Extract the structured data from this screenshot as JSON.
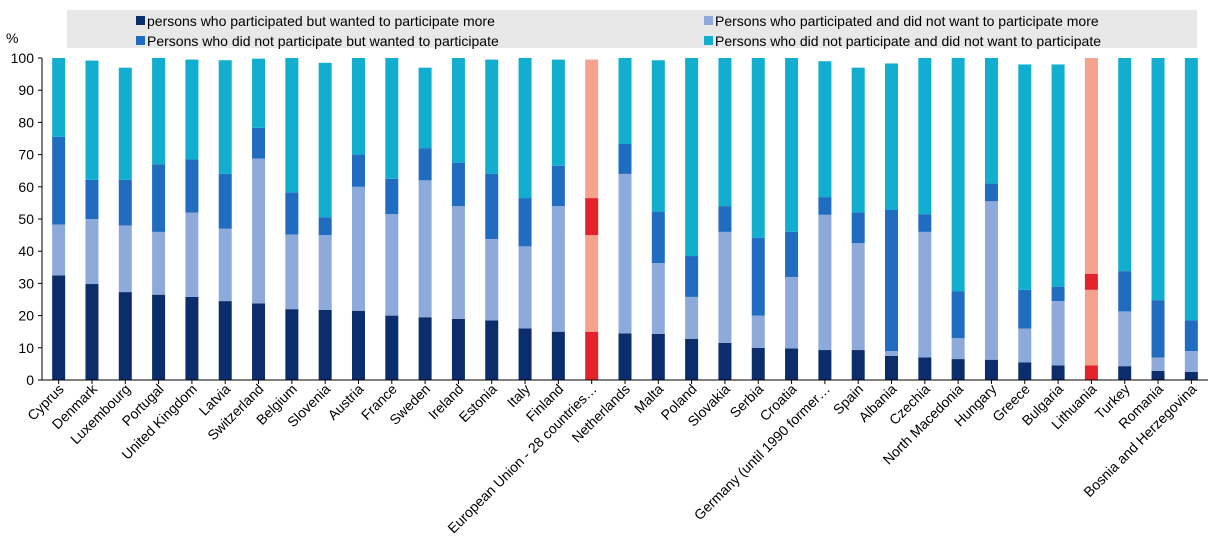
{
  "chart_data": {
    "type": "bar",
    "stacked": true,
    "title": "",
    "ylabel": "%",
    "xlabel": "",
    "ylim": [
      0,
      100
    ],
    "yticks": [
      0,
      10,
      20,
      30,
      40,
      50,
      60,
      70,
      80,
      90,
      100
    ],
    "grid": false,
    "legend_position": "top",
    "categories": [
      "Cyprus",
      "Denmark",
      "Luxembourg",
      "Portugal",
      "United Kingdom",
      "Latvia",
      "Switzerland",
      "Belgium",
      "Slovenia",
      "Austria",
      "France",
      "Sweden",
      "Ireland",
      "Estonia",
      "Italy",
      "Finland",
      "European Union - 28 countries…",
      "Netherlands",
      "Malta",
      "Poland",
      "Slovakia",
      "Serbia",
      "Croatia",
      "Germany (until 1990 former…",
      "Spain",
      "Albania",
      "Czechia",
      "North Macedonia",
      "Hungary",
      "Greece",
      "Bulgaria",
      "Lithuania",
      "Turkey",
      "Romania",
      "Bosnia and Herzegovina"
    ],
    "highlight_categories": [
      "European Union - 28 countries…",
      "Lithuania"
    ],
    "series": [
      {
        "name": "persons who participated but wanted to participate more",
        "color": "#0b2d6b",
        "highlight_color": "#e3222b",
        "values": [
          32.5,
          29.8,
          27.3,
          26.5,
          25.8,
          24.5,
          23.8,
          22.0,
          21.8,
          21.5,
          20.0,
          19.5,
          19.0,
          18.5,
          16.0,
          15.0,
          15.0,
          14.5,
          14.3,
          12.8,
          11.5,
          10.0,
          9.8,
          9.3,
          9.3,
          7.5,
          7.0,
          6.5,
          6.3,
          5.5,
          4.5,
          4.5,
          4.3,
          2.8,
          2.5
        ]
      },
      {
        "name": "Persons who participated and did not want to participate more",
        "color": "#8eaadb",
        "highlight_color": "#f5a28e",
        "values": [
          15.8,
          20.2,
          20.7,
          19.5,
          26.2,
          22.5,
          45.0,
          23.2,
          23.2,
          38.5,
          31.5,
          42.5,
          35.0,
          25.3,
          25.5,
          39.0,
          30.0,
          49.5,
          22.0,
          13.0,
          34.5,
          10.0,
          22.2,
          42.0,
          33.2,
          1.5,
          39.0,
          6.5,
          49.2,
          10.5,
          20.0,
          23.5,
          17.0,
          4.2,
          6.5
        ]
      },
      {
        "name": "Persons who did not participate but wanted to participate",
        "color": "#1f6cc0",
        "highlight_color": "#e3222b",
        "values": [
          27.2,
          12.2,
          14.2,
          21.0,
          16.5,
          17.0,
          9.5,
          13.0,
          5.5,
          10.0,
          11.0,
          10.0,
          13.5,
          20.2,
          15.0,
          12.5,
          11.5,
          9.3,
          16.0,
          12.7,
          8.0,
          24.2,
          14.0,
          5.5,
          9.5,
          43.8,
          5.5,
          14.5,
          5.5,
          12.0,
          4.5,
          5.0,
          12.5,
          17.8,
          9.5
        ]
      },
      {
        "name": "Persons who did not participate and did not want to participate",
        "color": "#12aed0",
        "highlight_color": "#f5a28e",
        "values": [
          24.5,
          37.0,
          34.8,
          33.0,
          31.0,
          35.3,
          21.5,
          41.8,
          48.0,
          30.0,
          37.5,
          25.0,
          32.5,
          35.5,
          43.5,
          33.0,
          43.0,
          26.7,
          47.0,
          61.5,
          46.0,
          55.8,
          54.0,
          42.2,
          45.0,
          45.5,
          48.5,
          72.5,
          39.0,
          70.0,
          69.0,
          67.0,
          66.2,
          75.2,
          81.5
        ]
      }
    ]
  }
}
